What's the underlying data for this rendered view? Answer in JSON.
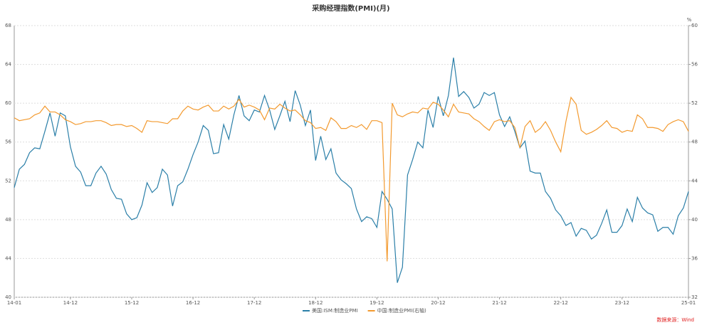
{
  "chart_data": {
    "type": "line",
    "title": "采购经理指数(PMI)(月)",
    "y2label": "%",
    "source": "数据来源：Wind",
    "categories": [
      "14-01",
      null,
      null,
      null,
      null,
      null,
      null,
      null,
      null,
      null,
      null,
      "14-12",
      null,
      null,
      null,
      null,
      null,
      null,
      null,
      null,
      null,
      null,
      null,
      "15-12",
      null,
      null,
      null,
      null,
      null,
      null,
      null,
      null,
      null,
      null,
      null,
      "16-12",
      null,
      null,
      null,
      null,
      null,
      null,
      null,
      null,
      null,
      null,
      null,
      "17-12",
      null,
      null,
      null,
      null,
      null,
      null,
      null,
      null,
      null,
      null,
      null,
      "18-12",
      null,
      null,
      null,
      null,
      null,
      null,
      null,
      null,
      null,
      null,
      null,
      "19-12",
      null,
      null,
      null,
      null,
      null,
      null,
      null,
      null,
      null,
      null,
      null,
      "20-12",
      null,
      null,
      null,
      null,
      null,
      null,
      null,
      null,
      null,
      null,
      null,
      "21-12",
      null,
      null,
      null,
      null,
      null,
      null,
      null,
      null,
      null,
      null,
      null,
      "22-12",
      null,
      null,
      null,
      null,
      null,
      null,
      null,
      null,
      null,
      null,
      null,
      "23-12",
      null,
      null,
      null,
      null,
      null,
      null,
      null,
      null,
      null,
      null,
      null,
      null,
      "25-01"
    ],
    "series": [
      {
        "name": "美国:ISM:制造业PMI",
        "color": "#2b7fa8",
        "values": [
          51.3,
          53.2,
          53.7,
          54.9,
          55.4,
          55.3,
          57.1,
          59.0,
          56.6,
          59.0,
          58.7,
          55.5,
          53.5,
          52.9,
          51.5,
          51.5,
          52.8,
          53.5,
          52.7,
          51.1,
          50.2,
          50.1,
          48.6,
          48.0,
          48.2,
          49.5,
          51.8,
          50.8,
          51.3,
          53.2,
          52.6,
          49.4,
          51.5,
          51.9,
          53.2,
          54.7,
          56.0,
          57.7,
          57.2,
          54.8,
          54.9,
          57.8,
          56.3,
          58.8,
          60.8,
          58.7,
          58.2,
          59.3,
          59.1,
          60.8,
          59.3,
          57.3,
          58.7,
          60.2,
          58.1,
          61.3,
          59.8,
          57.7,
          59.3,
          54.1,
          56.6,
          54.2,
          55.3,
          52.8,
          52.1,
          51.7,
          51.2,
          49.1,
          47.8,
          48.3,
          48.1,
          47.2,
          50.9,
          50.1,
          49.1,
          41.5,
          43.1,
          52.6,
          54.2,
          56.0,
          55.4,
          59.3,
          57.5,
          60.7,
          58.7,
          60.8,
          64.7,
          60.7,
          61.2,
          60.6,
          59.5,
          59.9,
          61.1,
          60.8,
          61.1,
          58.8,
          57.6,
          58.6,
          57.1,
          55.4,
          56.1,
          53.0,
          52.8,
          52.8,
          50.9,
          50.2,
          49.0,
          48.4,
          47.4,
          47.7,
          46.3,
          47.1,
          46.9,
          46.0,
          46.4,
          47.6,
          49.0,
          46.7,
          46.7,
          47.4,
          49.1,
          47.8,
          50.3,
          49.2,
          48.7,
          48.5,
          46.8,
          47.2,
          47.2,
          46.5,
          48.4,
          49.2,
          50.9
        ]
      },
      {
        "name": "中国:制造业PMI(右轴)",
        "color": "#f39a2f",
        "axis": "y2",
        "values": [
          50.5,
          50.2,
          50.3,
          50.4,
          50.8,
          51.0,
          51.7,
          51.1,
          51.1,
          50.8,
          50.3,
          50.1,
          49.8,
          49.9,
          50.1,
          50.1,
          50.2,
          50.2,
          50.0,
          49.7,
          49.8,
          49.8,
          49.6,
          49.7,
          49.4,
          49.0,
          50.2,
          50.1,
          50.1,
          50.0,
          49.9,
          50.4,
          50.4,
          51.2,
          51.7,
          51.4,
          51.3,
          51.6,
          51.8,
          51.2,
          51.2,
          51.7,
          51.4,
          51.7,
          52.4,
          51.6,
          51.8,
          51.6,
          51.3,
          50.3,
          51.5,
          51.4,
          51.9,
          51.5,
          51.2,
          51.3,
          50.8,
          50.2,
          50.0,
          49.4,
          49.5,
          49.2,
          50.5,
          50.1,
          49.4,
          49.4,
          49.7,
          49.5,
          49.8,
          49.3,
          50.2,
          50.2,
          50.0,
          35.7,
          52.0,
          50.8,
          50.6,
          50.9,
          51.1,
          51.0,
          51.5,
          51.4,
          52.1,
          51.9,
          51.3,
          50.6,
          51.9,
          51.1,
          51.0,
          50.9,
          50.4,
          50.1,
          49.6,
          49.2,
          50.1,
          50.3,
          50.1,
          50.2,
          49.5,
          47.4,
          49.6,
          50.2,
          49.0,
          49.4,
          50.1,
          49.2,
          48.0,
          47.0,
          50.1,
          52.6,
          51.9,
          49.2,
          48.8,
          49.0,
          49.3,
          49.7,
          50.2,
          49.5,
          49.4,
          49.0,
          49.2,
          49.1,
          50.8,
          50.4,
          49.5,
          49.5,
          49.4,
          49.1,
          49.8,
          50.1,
          50.3,
          50.1,
          49.1
        ]
      }
    ],
    "ylim": [
      40,
      68
    ],
    "yticks": [
      40,
      44,
      48,
      52,
      56,
      60,
      64,
      68
    ],
    "y2lim": [
      32,
      60
    ],
    "y2ticks": [
      32,
      36,
      40,
      44,
      48,
      52,
      56,
      60
    ],
    "grid": true
  }
}
